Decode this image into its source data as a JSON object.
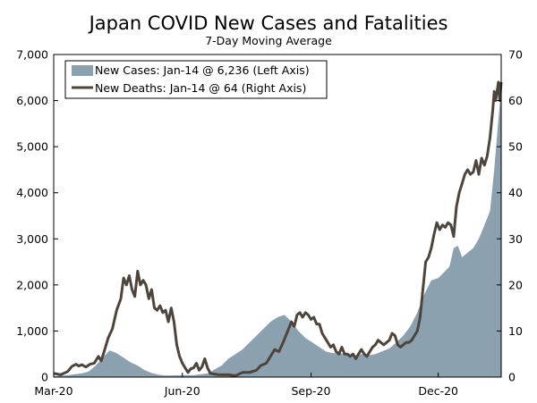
{
  "chart_data": {
    "type": "bar+line",
    "title": "Japan COVID New Cases and Fatalities",
    "subtitle": "7-Day Moving Average",
    "x_ticks": [
      {
        "label": "Mar-20",
        "day": 0
      },
      {
        "label": "Jun-20",
        "day": 92
      },
      {
        "label": "Sep-20",
        "day": 184
      },
      {
        "label": "Dec-20",
        "day": 275
      }
    ],
    "x_range_days": [
      0,
      320
    ],
    "x_start_date": "Mar-20",
    "y_left": {
      "ticks": [
        "0",
        "1,000",
        "2,000",
        "3,000",
        "4,000",
        "5,000",
        "6,000",
        "7,000"
      ],
      "min": 0,
      "max": 7000
    },
    "y_right": {
      "ticks": [
        "0",
        "10",
        "20",
        "30",
        "40",
        "50",
        "60",
        "70"
      ],
      "min": 0,
      "max": 70
    },
    "legend": {
      "position": "top-left",
      "entries": [
        "New Cases: Jan-14 @ 6,236 (Left Axis)",
        "New Deaths: Jan-14 @ 64 (Right Axis)"
      ]
    },
    "series": [
      {
        "name": "New Cases",
        "axis": "left",
        "style": "area",
        "color": "#8ca1b0",
        "points": [
          [
            0,
            20
          ],
          [
            10,
            40
          ],
          [
            20,
            80
          ],
          [
            25,
            120
          ],
          [
            30,
            250
          ],
          [
            35,
            420
          ],
          [
            40,
            580
          ],
          [
            45,
            520
          ],
          [
            50,
            420
          ],
          [
            55,
            320
          ],
          [
            60,
            250
          ],
          [
            65,
            150
          ],
          [
            70,
            90
          ],
          [
            75,
            50
          ],
          [
            80,
            35
          ],
          [
            90,
            40
          ],
          [
            100,
            40
          ],
          [
            110,
            80
          ],
          [
            120,
            250
          ],
          [
            125,
            400
          ],
          [
            130,
            500
          ],
          [
            135,
            600
          ],
          [
            140,
            750
          ],
          [
            145,
            900
          ],
          [
            150,
            1050
          ],
          [
            155,
            1200
          ],
          [
            160,
            1300
          ],
          [
            165,
            1350
          ],
          [
            170,
            1200
          ],
          [
            175,
            1000
          ],
          [
            180,
            850
          ],
          [
            185,
            750
          ],
          [
            190,
            650
          ],
          [
            195,
            550
          ],
          [
            200,
            520
          ],
          [
            205,
            520
          ],
          [
            210,
            480
          ],
          [
            215,
            470
          ],
          [
            220,
            500
          ],
          [
            225,
            470
          ],
          [
            230,
            500
          ],
          [
            235,
            560
          ],
          [
            240,
            620
          ],
          [
            245,
            750
          ],
          [
            250,
            900
          ],
          [
            255,
            1100
          ],
          [
            260,
            1400
          ],
          [
            265,
            1800
          ],
          [
            270,
            2100
          ],
          [
            275,
            2150
          ],
          [
            280,
            2300
          ],
          [
            283,
            2400
          ],
          [
            286,
            2800
          ],
          [
            289,
            2850
          ],
          [
            292,
            2600
          ],
          [
            296,
            2700
          ],
          [
            300,
            2800
          ],
          [
            304,
            3000
          ],
          [
            308,
            3300
          ],
          [
            312,
            3600
          ],
          [
            315,
            4500
          ],
          [
            318,
            5600
          ],
          [
            320,
            6236
          ]
        ]
      },
      {
        "name": "New Deaths",
        "axis": "right",
        "style": "line",
        "color": "#4d453c",
        "points": [
          [
            0,
            0.8
          ],
          [
            5,
            0.5
          ],
          [
            10,
            1.2
          ],
          [
            13,
            2.3
          ],
          [
            16,
            2.8
          ],
          [
            18,
            2.4
          ],
          [
            20,
            2.7
          ],
          [
            23,
            2.2
          ],
          [
            26,
            2.8
          ],
          [
            29,
            3
          ],
          [
            32,
            4.5
          ],
          [
            34,
            3.5
          ],
          [
            36,
            5.5
          ],
          [
            39,
            8.5
          ],
          [
            42,
            10.5
          ],
          [
            45,
            14.5
          ],
          [
            48,
            17
          ],
          [
            50,
            21.5
          ],
          [
            52,
            20
          ],
          [
            54,
            22
          ],
          [
            56,
            19
          ],
          [
            58,
            17.5
          ],
          [
            60,
            23
          ],
          [
            62,
            20
          ],
          [
            64,
            21
          ],
          [
            66,
            20
          ],
          [
            68,
            17
          ],
          [
            70,
            19
          ],
          [
            72,
            15
          ],
          [
            74,
            14.5
          ],
          [
            76,
            15.5
          ],
          [
            78,
            14
          ],
          [
            80,
            14.5
          ],
          [
            82,
            12
          ],
          [
            84,
            15
          ],
          [
            86,
            12
          ],
          [
            88,
            7
          ],
          [
            90,
            4.5
          ],
          [
            92,
            3
          ],
          [
            94,
            2
          ],
          [
            96,
            1
          ],
          [
            98,
            1.8
          ],
          [
            100,
            2
          ],
          [
            102,
            3
          ],
          [
            104,
            1.5
          ],
          [
            106,
            2.2
          ],
          [
            108,
            4
          ],
          [
            110,
            2
          ],
          [
            112,
            0.8
          ],
          [
            118,
            0.5
          ],
          [
            125,
            0.5
          ],
          [
            130,
            0.3
          ],
          [
            135,
            1
          ],
          [
            140,
            1
          ],
          [
            145,
            1.5
          ],
          [
            148,
            2.5
          ],
          [
            152,
            3
          ],
          [
            155,
            4.5
          ],
          [
            158,
            6
          ],
          [
            161,
            5.5
          ],
          [
            164,
            7.5
          ],
          [
            166,
            9
          ],
          [
            168,
            10.5
          ],
          [
            170,
            12
          ],
          [
            172,
            11
          ],
          [
            174,
            13.5
          ],
          [
            176,
            14
          ],
          [
            178,
            13
          ],
          [
            180,
            14
          ],
          [
            182,
            13.5
          ],
          [
            184,
            12.5
          ],
          [
            186,
            13
          ],
          [
            188,
            11.5
          ],
          [
            190,
            11.5
          ],
          [
            192,
            9.5
          ],
          [
            194,
            8.5
          ],
          [
            196,
            7.5
          ],
          [
            198,
            6.5
          ],
          [
            200,
            7
          ],
          [
            202,
            5.5
          ],
          [
            204,
            5
          ],
          [
            206,
            6.5
          ],
          [
            208,
            5
          ],
          [
            210,
            5
          ],
          [
            212,
            4.5
          ],
          [
            214,
            5
          ],
          [
            216,
            4
          ],
          [
            218,
            5
          ],
          [
            220,
            6
          ],
          [
            222,
            5
          ],
          [
            224,
            4.5
          ],
          [
            226,
            5.5
          ],
          [
            228,
            6.5
          ],
          [
            230,
            7
          ],
          [
            232,
            8
          ],
          [
            234,
            7.5
          ],
          [
            236,
            7
          ],
          [
            238,
            7.5
          ],
          [
            240,
            8
          ],
          [
            242,
            9.5
          ],
          [
            244,
            9
          ],
          [
            246,
            7
          ],
          [
            248,
            6.5
          ],
          [
            250,
            7
          ],
          [
            252,
            7.5
          ],
          [
            254,
            7.5
          ],
          [
            256,
            8
          ],
          [
            258,
            9
          ],
          [
            260,
            10
          ],
          [
            262,
            13
          ],
          [
            264,
            19
          ],
          [
            266,
            25
          ],
          [
            268,
            26
          ],
          [
            270,
            28
          ],
          [
            272,
            31
          ],
          [
            274,
            33.5
          ],
          [
            276,
            32
          ],
          [
            278,
            33
          ],
          [
            280,
            32.5
          ],
          [
            282,
            33.5
          ],
          [
            284,
            33
          ],
          [
            286,
            30.5
          ],
          [
            288,
            37
          ],
          [
            290,
            40
          ],
          [
            292,
            42
          ],
          [
            294,
            44
          ],
          [
            296,
            45
          ],
          [
            298,
            44
          ],
          [
            300,
            44.5
          ],
          [
            302,
            47
          ],
          [
            304,
            44
          ],
          [
            306,
            47.5
          ],
          [
            308,
            46
          ],
          [
            310,
            48
          ],
          [
            312,
            52
          ],
          [
            314,
            58
          ],
          [
            315,
            62
          ],
          [
            316,
            60
          ],
          [
            318,
            64
          ],
          [
            319,
            60
          ],
          [
            320,
            64
          ]
        ]
      }
    ]
  }
}
